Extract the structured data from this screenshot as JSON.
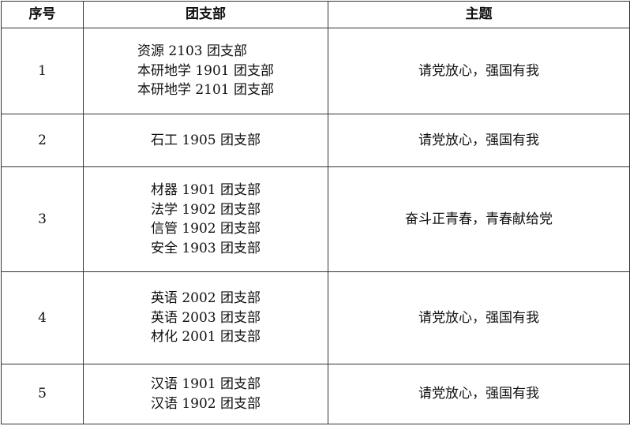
{
  "headers": [
    "序号",
    "团支部",
    "主题"
  ],
  "rows": [
    {
      "no": "1",
      "branches": [
        "资源 2103 团支部",
        "本研地学 1901 团支部",
        "本研地学 2101 团支部"
      ],
      "theme": "请党放心，强国有我"
    },
    {
      "no": "2",
      "branches": [
        "石工 1905 团支部"
      ],
      "theme": "请党放心，强国有我"
    },
    {
      "no": "3",
      "branches": [
        "材器 1901 团支部",
        "法学 1902 团支部",
        "信管 1902 团支部",
        "安全 1903 团支部"
      ],
      "theme": "奋斗正青春，青春献给党"
    },
    {
      "no": "4",
      "branches": [
        "英语 2002 团支部",
        "英语 2003 团支部",
        "材化 2001 团支部"
      ],
      "theme": "请党放心，强国有我"
    },
    {
      "no": "5",
      "branches": [
        "汉语 1901 团支部",
        "汉语 1902 团支部"
      ],
      "theme": "请党放心，强国有我"
    }
  ]
}
